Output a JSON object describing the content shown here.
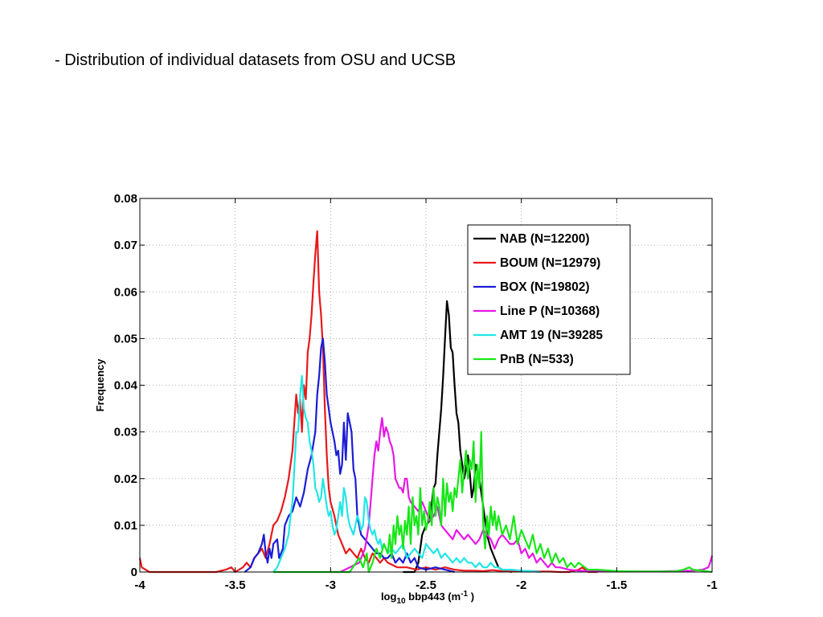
{
  "slide": {
    "title": "- Distribution of individual datasets from OSU and UCSB"
  },
  "chart_data": {
    "type": "line",
    "title": "",
    "xlabel": {
      "prefix": "log",
      "sub": "10",
      "mid": " bbp443 (m",
      "sup": "-1",
      "suffix": " )"
    },
    "ylabel": "Frequency",
    "xlim": [
      -4,
      -1
    ],
    "ylim": [
      0,
      0.08
    ],
    "xticks": [
      -4,
      -3.5,
      -3,
      -2.5,
      -2,
      -1.5,
      -1
    ],
    "xtick_labels": [
      "-4",
      "-3.5",
      "-3",
      "-2.5",
      "-2",
      "-1.5",
      "-1"
    ],
    "yticks": [
      0,
      0.01,
      0.02,
      0.03,
      0.04,
      0.05,
      0.06,
      0.07,
      0.08
    ],
    "ytick_labels": [
      "0",
      "0.01",
      "0.02",
      "0.03",
      "0.04",
      "0.05",
      "0.06",
      "0.07",
      "0.08"
    ],
    "grid": true,
    "legend_position": "top-right",
    "series": [
      {
        "name": "NAB (N=12200)",
        "color": "#000000",
        "x": [
          -2.62,
          -2.56,
          -2.54,
          -2.52,
          -2.5,
          -2.48,
          -2.46,
          -2.45,
          -2.44,
          -2.43,
          -2.42,
          -2.41,
          -2.4,
          -2.39,
          -2.38,
          -2.37,
          -2.36,
          -2.35,
          -2.34,
          -2.33,
          -2.32,
          -2.31,
          -2.3,
          -2.29,
          -2.28,
          -2.27,
          -2.26,
          -2.25,
          -2.24,
          -2.22,
          -2.2,
          -2.18,
          -2.16,
          -2.14,
          -2.12,
          -2.1,
          -2.05
        ],
        "y": [
          0,
          0,
          0.002,
          0.008,
          0.01,
          0.011,
          0.018,
          0.019,
          0.025,
          0.03,
          0.035,
          0.042,
          0.05,
          0.058,
          0.055,
          0.048,
          0.047,
          0.04,
          0.034,
          0.032,
          0.026,
          0.023,
          0.02,
          0.022,
          0.025,
          0.021,
          0.016,
          0.018,
          0.023,
          0.02,
          0.014,
          0.008,
          0.005,
          0.003,
          0.001,
          0.0005,
          0
        ]
      },
      {
        "name": "BOUM (N=12979)",
        "color": "#e8191c",
        "x": [
          -4,
          -3.99,
          -3.95,
          -3.6,
          -3.55,
          -3.52,
          -3.5,
          -3.48,
          -3.46,
          -3.44,
          -3.42,
          -3.4,
          -3.38,
          -3.36,
          -3.34,
          -3.32,
          -3.3,
          -3.28,
          -3.26,
          -3.24,
          -3.22,
          -3.2,
          -3.19,
          -3.18,
          -3.17,
          -3.16,
          -3.15,
          -3.14,
          -3.13,
          -3.12,
          -3.11,
          -3.1,
          -3.09,
          -3.08,
          -3.07,
          -3.06,
          -3.05,
          -3.04,
          -3.03,
          -3.02,
          -3.01,
          -3.0,
          -2.98,
          -2.96,
          -2.94,
          -2.92,
          -2.9,
          -2.88,
          -2.86,
          -2.84,
          -2.82,
          -2.8,
          -2.78,
          -2.76,
          -2.74,
          -2.72,
          -2.7,
          -2.65,
          -2.6,
          -2.55,
          -2.5,
          -2.45,
          -2.4,
          -2.35,
          -2.3,
          -2.25,
          -2.2,
          -2.15,
          -2.1,
          -2.05,
          -2.0,
          -1.95,
          -1.9,
          -1.85,
          -1.8,
          -1.75,
          -1.7,
          -1.68,
          -1.65,
          -1.6
        ],
        "y": [
          0.003,
          0.001,
          0,
          0,
          0.0005,
          0.001,
          0,
          0.0005,
          0.001,
          0.002,
          0.001,
          0.003,
          0.004,
          0.005,
          0.003,
          0.006,
          0.01,
          0.011,
          0.013,
          0.016,
          0.02,
          0.026,
          0.032,
          0.038,
          0.034,
          0.037,
          0.03,
          0.04,
          0.037,
          0.047,
          0.05,
          0.055,
          0.062,
          0.068,
          0.073,
          0.06,
          0.055,
          0.048,
          0.035,
          0.025,
          0.018,
          0.015,
          0.012,
          0.008,
          0.006,
          0.004,
          0.005,
          0.004,
          0.003,
          0.005,
          0.003,
          0.002,
          0.004,
          0.003,
          0.002,
          0.003,
          0.002,
          0.001,
          0.001,
          0.0005,
          0.001,
          0.0005,
          0.001,
          0.0005,
          0.0003,
          0.0003,
          0.0002,
          0.0004,
          0.0002,
          0.0001,
          0.0001,
          0.0002,
          0.0001,
          0.0001,
          0,
          0,
          0.0005,
          0.001,
          0,
          0
        ]
      },
      {
        "name": "BOX (N=19802)",
        "color": "#1c1cd6",
        "x": [
          -3.45,
          -3.42,
          -3.4,
          -3.38,
          -3.36,
          -3.35,
          -3.34,
          -3.33,
          -3.32,
          -3.31,
          -3.3,
          -3.28,
          -3.27,
          -3.26,
          -3.25,
          -3.24,
          -3.22,
          -3.2,
          -3.18,
          -3.16,
          -3.14,
          -3.12,
          -3.1,
          -3.08,
          -3.07,
          -3.06,
          -3.05,
          -3.04,
          -3.03,
          -3.02,
          -3.01,
          -3.0,
          -2.99,
          -2.98,
          -2.97,
          -2.96,
          -2.95,
          -2.94,
          -2.93,
          -2.92,
          -2.91,
          -2.9,
          -2.89,
          -2.88,
          -2.87,
          -2.86,
          -2.85,
          -2.84,
          -2.82,
          -2.8,
          -2.78,
          -2.76,
          -2.74,
          -2.72,
          -2.7,
          -2.68,
          -2.66,
          -2.64,
          -2.62,
          -2.6,
          -2.58,
          -2.56,
          -2.54,
          -2.5,
          -2.45,
          -2.4,
          -2.35
        ],
        "y": [
          0,
          0.001,
          0.003,
          0.004,
          0.006,
          0.008,
          0.004,
          0.002,
          0.005,
          0.003,
          0.006,
          0.007,
          0.003,
          0.004,
          0.005,
          0.01,
          0.012,
          0.013,
          0.016,
          0.014,
          0.017,
          0.022,
          0.025,
          0.03,
          0.038,
          0.042,
          0.048,
          0.05,
          0.045,
          0.038,
          0.035,
          0.032,
          0.03,
          0.028,
          0.025,
          0.026,
          0.021,
          0.023,
          0.032,
          0.024,
          0.034,
          0.032,
          0.03,
          0.022,
          0.02,
          0.012,
          0.01,
          0.008,
          0.007,
          0.006,
          0.005,
          0.004,
          0.004,
          0.003,
          0.003,
          0.004,
          0.002,
          0.003,
          0.002,
          0.004,
          0.002,
          0.003,
          0.001,
          0.0005,
          0.001,
          0.0005,
          0
        ]
      },
      {
        "name": "Line P (N=10368)",
        "color": "#e619e6",
        "x": [
          -3.0,
          -2.95,
          -2.9,
          -2.85,
          -2.82,
          -2.8,
          -2.79,
          -2.78,
          -2.77,
          -2.76,
          -2.75,
          -2.74,
          -2.73,
          -2.72,
          -2.71,
          -2.7,
          -2.69,
          -2.68,
          -2.67,
          -2.66,
          -2.65,
          -2.64,
          -2.63,
          -2.62,
          -2.61,
          -2.6,
          -2.59,
          -2.58,
          -2.56,
          -2.54,
          -2.52,
          -2.5,
          -2.48,
          -2.46,
          -2.44,
          -2.42,
          -2.4,
          -2.38,
          -2.36,
          -2.34,
          -2.32,
          -2.3,
          -2.28,
          -2.26,
          -2.24,
          -2.22,
          -2.2,
          -2.18,
          -2.16,
          -2.14,
          -2.12,
          -2.1,
          -2.08,
          -2.06,
          -2.04,
          -2.02,
          -2.0,
          -1.98,
          -1.96,
          -1.94,
          -1.92,
          -1.9,
          -1.88,
          -1.86,
          -1.84,
          -1.82,
          -1.8,
          -1.75,
          -1.7,
          -1.6,
          -1.5,
          -1.4,
          -1.3,
          -1.2,
          -1.1,
          -1.05,
          -1.02,
          -1.01,
          -1.0
        ],
        "y": [
          0,
          0,
          0.001,
          0.002,
          0.005,
          0.01,
          0.015,
          0.02,
          0.025,
          0.028,
          0.026,
          0.03,
          0.033,
          0.029,
          0.031,
          0.03,
          0.028,
          0.027,
          0.025,
          0.02,
          0.019,
          0.018,
          0.018,
          0.017,
          0.02,
          0.02,
          0.016,
          0.015,
          0.014,
          0.013,
          0.015,
          0.013,
          0.011,
          0.012,
          0.014,
          0.01,
          0.009,
          0.008,
          0.007,
          0.009,
          0.008,
          0.007,
          0.008,
          0.007,
          0.006,
          0.007,
          0.009,
          0.008,
          0.007,
          0.005,
          0.007,
          0.008,
          0.007,
          0.006,
          0.006,
          0.007,
          0.004,
          0.005,
          0.003,
          0.004,
          0.002,
          0.003,
          0.002,
          0.001,
          0.002,
          0.001,
          0.001,
          0.0005,
          0.0003,
          0.0002,
          0.0001,
          0.0001,
          0.0001,
          0.0002,
          0.0003,
          0.0005,
          0.001,
          0.002,
          0.0035
        ]
      },
      {
        "name": "AMT 19 (N=39285",
        "color": "#22e6e6",
        "x": [
          -3.3,
          -3.28,
          -3.26,
          -3.24,
          -3.22,
          -3.21,
          -3.2,
          -3.19,
          -3.18,
          -3.17,
          -3.16,
          -3.15,
          -3.14,
          -3.13,
          -3.12,
          -3.11,
          -3.1,
          -3.09,
          -3.08,
          -3.07,
          -3.06,
          -3.05,
          -3.04,
          -3.03,
          -3.02,
          -3.01,
          -3.0,
          -2.99,
          -2.98,
          -2.97,
          -2.96,
          -2.95,
          -2.94,
          -2.93,
          -2.92,
          -2.91,
          -2.9,
          -2.89,
          -2.88,
          -2.87,
          -2.86,
          -2.85,
          -2.84,
          -2.83,
          -2.82,
          -2.81,
          -2.8,
          -2.79,
          -2.78,
          -2.77,
          -2.76,
          -2.75,
          -2.74,
          -2.73,
          -2.72,
          -2.71,
          -2.7,
          -2.68,
          -2.66,
          -2.64,
          -2.62,
          -2.6,
          -2.58,
          -2.56,
          -2.54,
          -2.52,
          -2.5,
          -2.48,
          -2.46,
          -2.44,
          -2.42,
          -2.4,
          -2.38,
          -2.36,
          -2.34,
          -2.32,
          -2.3,
          -2.28,
          -2.26,
          -2.24,
          -2.22,
          -2.2,
          -2.18,
          -2.16,
          -2.14,
          -2.12,
          -2.1,
          -2.05,
          -2.0,
          -1.95,
          -1.9
        ],
        "y": [
          0,
          0.001,
          0.003,
          0.005,
          0.008,
          0.012,
          0.015,
          0.022,
          0.03,
          0.03,
          0.038,
          0.042,
          0.035,
          0.033,
          0.032,
          0.028,
          0.026,
          0.023,
          0.018,
          0.017,
          0.015,
          0.016,
          0.02,
          0.017,
          0.014,
          0.012,
          0.013,
          0.01,
          0.008,
          0.009,
          0.012,
          0.015,
          0.012,
          0.018,
          0.016,
          0.012,
          0.01,
          0.009,
          0.008,
          0.01,
          0.012,
          0.011,
          0.009,
          0.01,
          0.016,
          0.015,
          0.011,
          0.009,
          0.008,
          0.009,
          0.007,
          0.006,
          0.007,
          0.005,
          0.006,
          0.005,
          0.004,
          0.005,
          0.004,
          0.005,
          0.006,
          0.003,
          0.004,
          0.005,
          0.004,
          0.003,
          0.006,
          0.005,
          0.004,
          0.005,
          0.003,
          0.004,
          0.003,
          0.002,
          0.003,
          0.002,
          0.003,
          0.002,
          0.002,
          0.001,
          0.002,
          0.001,
          0.001,
          0.002,
          0.001,
          0.001,
          0.0005,
          0.0005,
          0.0003,
          0.0002,
          0
        ]
      },
      {
        "name": "PnB (N=533)",
        "color": "#19e619",
        "x": [
          -3.3,
          -2.9,
          -2.85,
          -2.83,
          -2.81,
          -2.8,
          -2.78,
          -2.76,
          -2.74,
          -2.72,
          -2.7,
          -2.69,
          -2.68,
          -2.67,
          -2.66,
          -2.65,
          -2.64,
          -2.63,
          -2.62,
          -2.61,
          -2.6,
          -2.59,
          -2.58,
          -2.57,
          -2.56,
          -2.55,
          -2.54,
          -2.53,
          -2.52,
          -2.51,
          -2.5,
          -2.49,
          -2.48,
          -2.47,
          -2.46,
          -2.45,
          -2.44,
          -2.43,
          -2.42,
          -2.41,
          -2.4,
          -2.39,
          -2.38,
          -2.37,
          -2.36,
          -2.35,
          -2.34,
          -2.33,
          -2.32,
          -2.31,
          -2.3,
          -2.29,
          -2.28,
          -2.27,
          -2.26,
          -2.25,
          -2.24,
          -2.23,
          -2.22,
          -2.21,
          -2.2,
          -2.19,
          -2.18,
          -2.17,
          -2.16,
          -2.15,
          -2.14,
          -2.13,
          -2.12,
          -2.11,
          -2.1,
          -2.08,
          -2.06,
          -2.04,
          -2.02,
          -2.0,
          -1.98,
          -1.96,
          -1.94,
          -1.92,
          -1.9,
          -1.88,
          -1.86,
          -1.84,
          -1.82,
          -1.8,
          -1.78,
          -1.76,
          -1.74,
          -1.72,
          -1.7,
          -1.65,
          -1.6,
          -1.5,
          -1.4,
          -1.3,
          -1.2,
          -1.15,
          -1.12,
          -1.1,
          -1.05,
          -1.0
        ],
        "y": [
          0,
          0,
          0.003,
          0.001,
          0.004,
          0.0,
          0.002,
          0.005,
          0.003,
          0.006,
          0.004,
          0.008,
          0.003,
          0.01,
          0.006,
          0.012,
          0.008,
          0.01,
          0.005,
          0.011,
          0.008,
          0.014,
          0.006,
          0.016,
          0.01,
          0.012,
          0.008,
          0.018,
          0.01,
          0.013,
          0.009,
          0.011,
          0.015,
          0.01,
          0.018,
          0.012,
          0.016,
          0.014,
          0.01,
          0.02,
          0.012,
          0.019,
          0.015,
          0.017,
          0.013,
          0.018,
          0.016,
          0.02,
          0.024,
          0.017,
          0.022,
          0.026,
          0.02,
          0.024,
          0.022,
          0.028,
          0.015,
          0.023,
          0.018,
          0.03,
          0.01,
          0.005,
          0.012,
          0.008,
          0.014,
          0.01,
          0.013,
          0.009,
          0.012,
          0.01,
          0.008,
          0.01,
          0.007,
          0.012,
          0.006,
          0.009,
          0.007,
          0.005,
          0.008,
          0.004,
          0.006,
          0.003,
          0.005,
          0.002,
          0.004,
          0.002,
          0.003,
          0.001,
          0.002,
          0.001,
          0.002,
          0.0005,
          0.0005,
          0.0002,
          0.0001,
          0.0001,
          0.0001,
          0.0005,
          0.001,
          0.0005,
          0.0003,
          0
        ]
      }
    ]
  }
}
